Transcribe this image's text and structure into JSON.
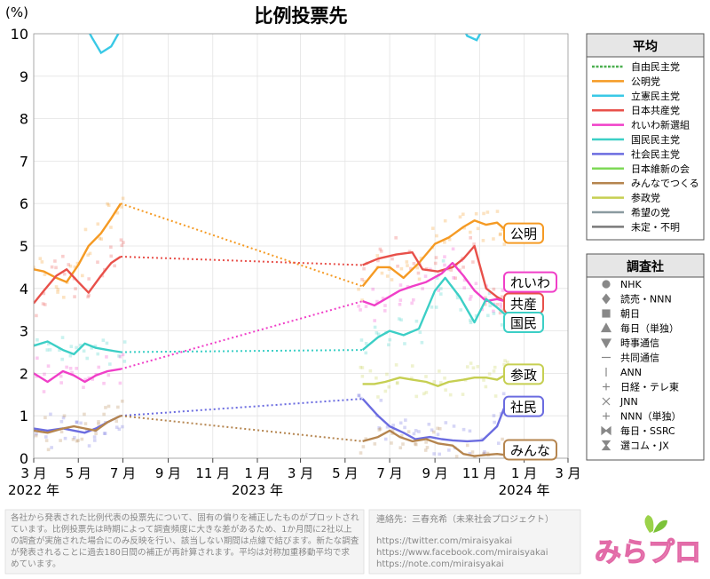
{
  "chart_data": {
    "type": "line",
    "title": "比例投票先",
    "ylabel": "(%)",
    "ylim": [
      0,
      10
    ],
    "y_ticks": [
      "0",
      "1",
      "2",
      "3",
      "4",
      "5",
      "6",
      "7",
      "8",
      "9",
      "10"
    ],
    "x_range": [
      "2022-03-01",
      "2024-03-01"
    ],
    "x_ticks": [
      {
        "date": "2022-03-01",
        "label": "3 月"
      },
      {
        "date": "2022-05-01",
        "label": "5 月"
      },
      {
        "date": "2022-07-01",
        "label": "7 月"
      },
      {
        "date": "2022-09-01",
        "label": "9 月"
      },
      {
        "date": "2022-11-01",
        "label": "11 月"
      },
      {
        "date": "2023-01-01",
        "label": "1 月"
      },
      {
        "date": "2023-03-01",
        "label": "3 月"
      },
      {
        "date": "2023-05-01",
        "label": "5 月"
      },
      {
        "date": "2023-07-01",
        "label": "7 月"
      },
      {
        "date": "2023-09-01",
        "label": "9 月"
      },
      {
        "date": "2023-11-01",
        "label": "11 月"
      },
      {
        "date": "2024-01-01",
        "label": "1 月"
      },
      {
        "date": "2024-03-01",
        "label": "3 月"
      }
    ],
    "year_labels": [
      {
        "date": "2022-03-01",
        "label": "2022 年"
      },
      {
        "date": "2023-01-01",
        "label": "2023 年"
      },
      {
        "date": "2024-01-01",
        "label": "2024 年"
      }
    ],
    "grid": true,
    "series": [
      {
        "name": "自由民主党",
        "color": "#4caf50",
        "style": "dashed",
        "label": "",
        "points": []
      },
      {
        "name": "公明党",
        "color": "#f59a23",
        "label": "公明",
        "label_y": 5.3,
        "points": [
          [
            "2022-03-01",
            4.45
          ],
          [
            "2022-03-15",
            4.4
          ],
          [
            "2022-04-01",
            4.25
          ],
          [
            "2022-04-15",
            4.15
          ],
          [
            "2022-05-01",
            4.55
          ],
          [
            "2022-05-15",
            5.0
          ],
          [
            "2022-06-01",
            5.3
          ],
          [
            "2022-06-15",
            5.65
          ],
          [
            "2022-06-28",
            6.0
          ],
          [
            "2023-05-25",
            4.05
          ],
          [
            "2023-06-15",
            4.5
          ],
          [
            "2023-07-01",
            4.5
          ],
          [
            "2023-07-20",
            4.25
          ],
          [
            "2023-08-10",
            4.6
          ],
          [
            "2023-09-01",
            5.05
          ],
          [
            "2023-09-20",
            5.2
          ],
          [
            "2023-10-10",
            5.45
          ],
          [
            "2023-10-25",
            5.6
          ],
          [
            "2023-11-10",
            5.5
          ],
          [
            "2023-11-25",
            5.55
          ],
          [
            "2023-12-05",
            5.4
          ]
        ]
      },
      {
        "name": "立憲民主党",
        "color": "#39c9e6",
        "label": "",
        "points": []
      },
      {
        "name": "日本共産党",
        "color": "#e8504a",
        "label": "共産",
        "label_y": 3.65,
        "points": [
          [
            "2022-03-01",
            3.65
          ],
          [
            "2022-03-15",
            3.95
          ],
          [
            "2022-04-01",
            4.3
          ],
          [
            "2022-04-15",
            4.45
          ],
          [
            "2022-05-01",
            4.15
          ],
          [
            "2022-05-15",
            3.9
          ],
          [
            "2022-06-01",
            4.3
          ],
          [
            "2022-06-15",
            4.6
          ],
          [
            "2022-06-28",
            4.75
          ],
          [
            "2023-05-25",
            4.55
          ],
          [
            "2023-06-15",
            4.7
          ],
          [
            "2023-07-10",
            4.8
          ],
          [
            "2023-08-01",
            4.85
          ],
          [
            "2023-08-15",
            4.45
          ],
          [
            "2023-09-05",
            4.4
          ],
          [
            "2023-09-25",
            4.5
          ],
          [
            "2023-10-10",
            4.7
          ],
          [
            "2023-10-25",
            5.0
          ],
          [
            "2023-11-10",
            4.0
          ],
          [
            "2023-11-25",
            3.8
          ],
          [
            "2023-12-05",
            3.7
          ]
        ]
      },
      {
        "name": "れいわ新選組",
        "color": "#f03fc8",
        "label": "れいわ",
        "label_y": 4.15,
        "points": [
          [
            "2022-03-01",
            2.0
          ],
          [
            "2022-03-20",
            1.8
          ],
          [
            "2022-04-10",
            2.05
          ],
          [
            "2022-04-25",
            1.95
          ],
          [
            "2022-05-10",
            1.8
          ],
          [
            "2022-05-25",
            1.95
          ],
          [
            "2022-06-10",
            2.05
          ],
          [
            "2022-06-28",
            2.1
          ],
          [
            "2023-05-25",
            3.7
          ],
          [
            "2023-06-10",
            3.6
          ],
          [
            "2023-06-25",
            3.75
          ],
          [
            "2023-07-15",
            3.95
          ],
          [
            "2023-08-01",
            4.05
          ],
          [
            "2023-08-20",
            4.15
          ],
          [
            "2023-09-10",
            4.35
          ],
          [
            "2023-09-25",
            4.6
          ],
          [
            "2023-10-10",
            4.3
          ],
          [
            "2023-10-25",
            3.95
          ],
          [
            "2023-11-10",
            3.7
          ],
          [
            "2023-11-25",
            3.75
          ],
          [
            "2023-12-05",
            3.7
          ]
        ]
      },
      {
        "name": "国民民主党",
        "color": "#3ccfc6",
        "label": "国民",
        "label_y": 3.2,
        "points": [
          [
            "2022-03-01",
            2.65
          ],
          [
            "2022-03-20",
            2.75
          ],
          [
            "2022-04-10",
            2.55
          ],
          [
            "2022-04-25",
            2.45
          ],
          [
            "2022-05-10",
            2.7
          ],
          [
            "2022-05-25",
            2.6
          ],
          [
            "2022-06-10",
            2.55
          ],
          [
            "2022-06-28",
            2.5
          ],
          [
            "2023-05-25",
            2.55
          ],
          [
            "2023-06-15",
            2.85
          ],
          [
            "2023-07-01",
            3.0
          ],
          [
            "2023-07-20",
            2.9
          ],
          [
            "2023-08-10",
            3.05
          ],
          [
            "2023-09-01",
            3.95
          ],
          [
            "2023-09-15",
            4.25
          ],
          [
            "2023-10-05",
            3.8
          ],
          [
            "2023-10-25",
            3.2
          ],
          [
            "2023-11-10",
            3.75
          ],
          [
            "2023-11-25",
            3.55
          ],
          [
            "2023-12-05",
            3.4
          ]
        ]
      },
      {
        "name": "社会民主党",
        "color": "#6b6ce0",
        "label": "社民",
        "label_y": 1.22,
        "points": [
          [
            "2022-03-01",
            0.7
          ],
          [
            "2022-03-20",
            0.65
          ],
          [
            "2022-04-10",
            0.7
          ],
          [
            "2022-04-25",
            0.65
          ],
          [
            "2022-05-10",
            0.6
          ],
          [
            "2022-05-25",
            0.7
          ],
          [
            "2022-06-10",
            0.85
          ],
          [
            "2022-06-28",
            1.0
          ],
          [
            "2023-05-25",
            1.4
          ],
          [
            "2023-06-15",
            1.0
          ],
          [
            "2023-07-01",
            0.75
          ],
          [
            "2023-07-20",
            0.6
          ],
          [
            "2023-08-05",
            0.45
          ],
          [
            "2023-08-25",
            0.5
          ],
          [
            "2023-09-10",
            0.45
          ],
          [
            "2023-09-25",
            0.42
          ],
          [
            "2023-10-15",
            0.4
          ],
          [
            "2023-11-05",
            0.42
          ],
          [
            "2023-11-25",
            0.75
          ],
          [
            "2023-12-05",
            1.2
          ]
        ]
      },
      {
        "name": "日本維新の会",
        "color": "#7ed957",
        "label": "",
        "points": []
      },
      {
        "name": "みんなでつくる",
        "color": "#b5854f",
        "label": "みんな",
        "label_y": 0.2,
        "points": [
          [
            "2022-03-01",
            0.65
          ],
          [
            "2022-03-20",
            0.6
          ],
          [
            "2022-04-10",
            0.7
          ],
          [
            "2022-04-25",
            0.75
          ],
          [
            "2022-05-10",
            0.7
          ],
          [
            "2022-05-25",
            0.65
          ],
          [
            "2022-06-10",
            0.85
          ],
          [
            "2022-06-28",
            1.0
          ],
          [
            "2023-05-25",
            0.4
          ],
          [
            "2023-06-15",
            0.5
          ],
          [
            "2023-07-01",
            0.65
          ],
          [
            "2023-07-15",
            0.5
          ],
          [
            "2023-08-01",
            0.4
          ],
          [
            "2023-08-20",
            0.45
          ],
          [
            "2023-09-05",
            0.35
          ],
          [
            "2023-09-25",
            0.3
          ],
          [
            "2023-10-10",
            0.1
          ],
          [
            "2023-10-25",
            0.05
          ],
          [
            "2023-11-10",
            0.08
          ],
          [
            "2023-11-25",
            0.1
          ],
          [
            "2023-12-05",
            0.08
          ]
        ]
      },
      {
        "name": "参政党",
        "color": "#c6cf52",
        "label": "参政",
        "label_y": 1.98,
        "points": [
          [
            "2023-05-25",
            1.75
          ],
          [
            "2023-06-10",
            1.75
          ],
          [
            "2023-06-25",
            1.8
          ],
          [
            "2023-07-15",
            1.9
          ],
          [
            "2023-08-01",
            1.85
          ],
          [
            "2023-08-20",
            1.8
          ],
          [
            "2023-09-05",
            1.7
          ],
          [
            "2023-09-20",
            1.8
          ],
          [
            "2023-10-10",
            1.85
          ],
          [
            "2023-10-25",
            1.9
          ],
          [
            "2023-11-10",
            1.9
          ],
          [
            "2023-11-25",
            1.85
          ],
          [
            "2023-12-05",
            1.95
          ]
        ]
      },
      {
        "name": "希望の党",
        "color": "#8a9aa0",
        "label": "",
        "points": []
      },
      {
        "name": "未定・不明",
        "color": "#7a7a7a",
        "label": "",
        "points": []
      }
    ],
    "upper_lines": [
      {
        "color": "#39c9e6",
        "points": [
          [
            "2022-05-01",
            10.5
          ],
          [
            "2022-05-20",
            9.9
          ],
          [
            "2022-06-01",
            9.55
          ],
          [
            "2022-06-15",
            9.7
          ],
          [
            "2022-06-28",
            10.1
          ]
        ]
      },
      {
        "color": "#39c9e6",
        "points": [
          [
            "2023-10-05",
            10.3
          ],
          [
            "2023-10-15",
            9.95
          ],
          [
            "2023-10-28",
            9.85
          ],
          [
            "2023-11-08",
            10.2
          ]
        ]
      }
    ],
    "legend_header": "平均",
    "survey_header": "調査社",
    "survey_legend": [
      {
        "label": "NHK",
        "symbol": "circle"
      },
      {
        "label": "読売・NNN",
        "symbol": "diamond"
      },
      {
        "label": "朝日",
        "symbol": "square"
      },
      {
        "label": "毎日（単独）",
        "symbol": "triangle-up"
      },
      {
        "label": "時事通信",
        "symbol": "triangle-down"
      },
      {
        "label": "共同通信",
        "symbol": "dash"
      },
      {
        "label": "ANN",
        "symbol": "vbar"
      },
      {
        "label": "日経・テレ東",
        "symbol": "plus"
      },
      {
        "label": "JNN",
        "symbol": "cross"
      },
      {
        "label": "NNN（単独）",
        "symbol": "plus"
      },
      {
        "label": "毎日・SSRC",
        "symbol": "bowtie"
      },
      {
        "label": "選コム・JX",
        "symbol": "hourglass"
      }
    ]
  },
  "footer": {
    "note": "各社から発表された比例代表の投票先について、固有の偏りを補正したものがプロットされています。比例投票先は時期によって調査頻度に大きな差があるため、1か月間に2社以上の調査が実施された場合にのみ反映を行い、該当しない期間は点線で結びます。新たな調査が発表されることに過去180日間の補正が再計算されます。平均は対称加重移動平均で求めています。",
    "contact": "連絡先：三春充希（未来社会プロジェクト）",
    "links": [
      "https://twitter.com/miraisyakai",
      "https://www.facebook.com/miraisyakai",
      "https://note.com/miraisyakai"
    ]
  },
  "logo": {
    "text": "みらプロ"
  }
}
